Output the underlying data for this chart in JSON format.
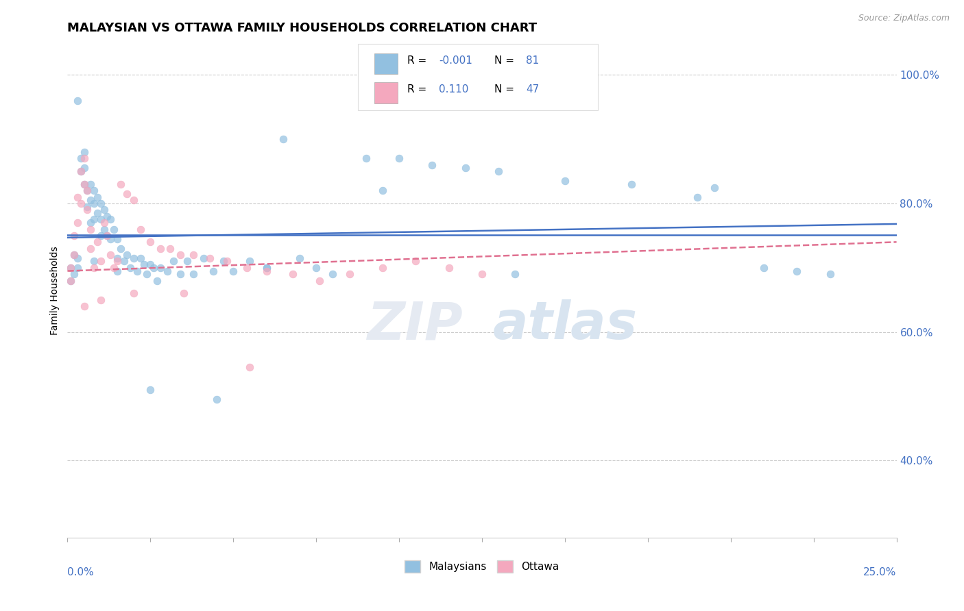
{
  "title": "MALAYSIAN VS OTTAWA FAMILY HOUSEHOLDS CORRELATION CHART",
  "source_text": "Source: ZipAtlas.com",
  "ylabel": "Family Households",
  "xmin": 0.0,
  "xmax": 0.25,
  "ymin": 0.28,
  "ymax": 1.05,
  "blue_color": "#92c0e0",
  "pink_color": "#f4a8be",
  "blue_line_color": "#4472c4",
  "pink_line_color": "#e07090",
  "blue_x": [
    0.001,
    0.001,
    0.002,
    0.002,
    0.003,
    0.003,
    0.003,
    0.004,
    0.004,
    0.005,
    0.005,
    0.005,
    0.006,
    0.006,
    0.007,
    0.007,
    0.007,
    0.008,
    0.008,
    0.008,
    0.009,
    0.009,
    0.01,
    0.01,
    0.01,
    0.011,
    0.011,
    0.012,
    0.012,
    0.013,
    0.013,
    0.014,
    0.015,
    0.015,
    0.016,
    0.017,
    0.018,
    0.019,
    0.02,
    0.021,
    0.022,
    0.023,
    0.024,
    0.025,
    0.026,
    0.027,
    0.028,
    0.03,
    0.032,
    0.034,
    0.036,
    0.038,
    0.041,
    0.044,
    0.047,
    0.05,
    0.055,
    0.06,
    0.065,
    0.07,
    0.075,
    0.08,
    0.09,
    0.1,
    0.11,
    0.12,
    0.13,
    0.15,
    0.17,
    0.19,
    0.21,
    0.22,
    0.23,
    0.195,
    0.135,
    0.095,
    0.06,
    0.045,
    0.025,
    0.015,
    0.008
  ],
  "blue_y": [
    0.7,
    0.68,
    0.72,
    0.69,
    0.715,
    0.7,
    0.96,
    0.87,
    0.85,
    0.88,
    0.855,
    0.83,
    0.82,
    0.795,
    0.83,
    0.805,
    0.77,
    0.82,
    0.8,
    0.775,
    0.81,
    0.785,
    0.8,
    0.775,
    0.75,
    0.79,
    0.76,
    0.78,
    0.75,
    0.775,
    0.745,
    0.76,
    0.745,
    0.715,
    0.73,
    0.71,
    0.72,
    0.7,
    0.715,
    0.695,
    0.715,
    0.705,
    0.69,
    0.705,
    0.7,
    0.68,
    0.7,
    0.695,
    0.71,
    0.69,
    0.71,
    0.69,
    0.715,
    0.695,
    0.71,
    0.695,
    0.71,
    0.7,
    0.9,
    0.715,
    0.7,
    0.69,
    0.87,
    0.87,
    0.86,
    0.855,
    0.85,
    0.835,
    0.83,
    0.81,
    0.7,
    0.695,
    0.69,
    0.825,
    0.69,
    0.82,
    0.7,
    0.495,
    0.51,
    0.695,
    0.71
  ],
  "pink_x": [
    0.001,
    0.001,
    0.002,
    0.002,
    0.003,
    0.003,
    0.004,
    0.004,
    0.005,
    0.005,
    0.006,
    0.006,
    0.007,
    0.007,
    0.008,
    0.009,
    0.01,
    0.011,
    0.012,
    0.013,
    0.014,
    0.015,
    0.016,
    0.018,
    0.02,
    0.022,
    0.025,
    0.028,
    0.031,
    0.034,
    0.038,
    0.043,
    0.048,
    0.054,
    0.06,
    0.068,
    0.076,
    0.085,
    0.095,
    0.105,
    0.115,
    0.125,
    0.005,
    0.01,
    0.02,
    0.035,
    0.055
  ],
  "pink_y": [
    0.7,
    0.68,
    0.75,
    0.72,
    0.81,
    0.77,
    0.85,
    0.8,
    0.87,
    0.83,
    0.82,
    0.79,
    0.76,
    0.73,
    0.7,
    0.74,
    0.71,
    0.77,
    0.75,
    0.72,
    0.7,
    0.71,
    0.83,
    0.815,
    0.805,
    0.76,
    0.74,
    0.73,
    0.73,
    0.72,
    0.72,
    0.715,
    0.71,
    0.7,
    0.695,
    0.69,
    0.68,
    0.69,
    0.7,
    0.71,
    0.7,
    0.69,
    0.64,
    0.65,
    0.66,
    0.66,
    0.545
  ]
}
